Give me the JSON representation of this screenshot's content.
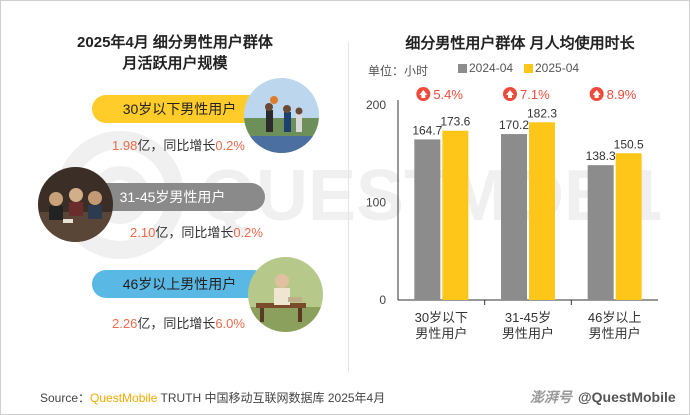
{
  "left": {
    "title_line1": "2025年4月 细分男性用户群体",
    "title_line2": "月活跃用户规模",
    "groups": [
      {
        "label": "30岁以下男性用户",
        "mau": "1.98",
        "unit": "亿，同比增长",
        "growth": "0.2%",
        "color": "#ffcc29",
        "photo": "basketball-players"
      },
      {
        "label": "31-45岁男性用户",
        "mau": "2.10",
        "unit": "亿，同比增长",
        "growth": "0.2%",
        "color": "#8a8a8a",
        "photo": "group-dinner"
      },
      {
        "label": "46岁以上男性用户",
        "mau": "2.26",
        "unit": "亿，同比增长",
        "growth": "6.0%",
        "color": "#5ab8e4",
        "photo": "elderly-man-on-bench"
      }
    ]
  },
  "right": {
    "title": "细分男性用户群体 月人均使用时长",
    "unit": "单位：小时"
  },
  "chart_data": {
    "type": "bar",
    "title": "细分男性用户群体 月人均使用时长",
    "ylabel": "单位：小时",
    "categories": [
      "30岁以下\n男性用户",
      "31-45岁\n男性用户",
      "46岁以上\n男性用户"
    ],
    "series": [
      {
        "name": "2024-04",
        "values": [
          164.7,
          170.2,
          138.3
        ],
        "color": "#8c8c8c"
      },
      {
        "name": "2025-04",
        "values": [
          173.6,
          182.3,
          150.5
        ],
        "color": "#ffc61a"
      }
    ],
    "growth": [
      "5.4%",
      "7.1%",
      "8.9%"
    ],
    "yticks": [
      0,
      100,
      200
    ],
    "ylim": [
      0,
      200
    ],
    "grid": false,
    "legend_position": "top"
  },
  "footer": {
    "source_prefix": "Source：",
    "brand": "QuestMobile",
    "source_rest": " TRUTH 中国移动互联网数据库 2025年4月",
    "credit_logo": "澎湃号",
    "credit_text": "@QuestMobile"
  },
  "watermark": "QUESTMOBILE"
}
